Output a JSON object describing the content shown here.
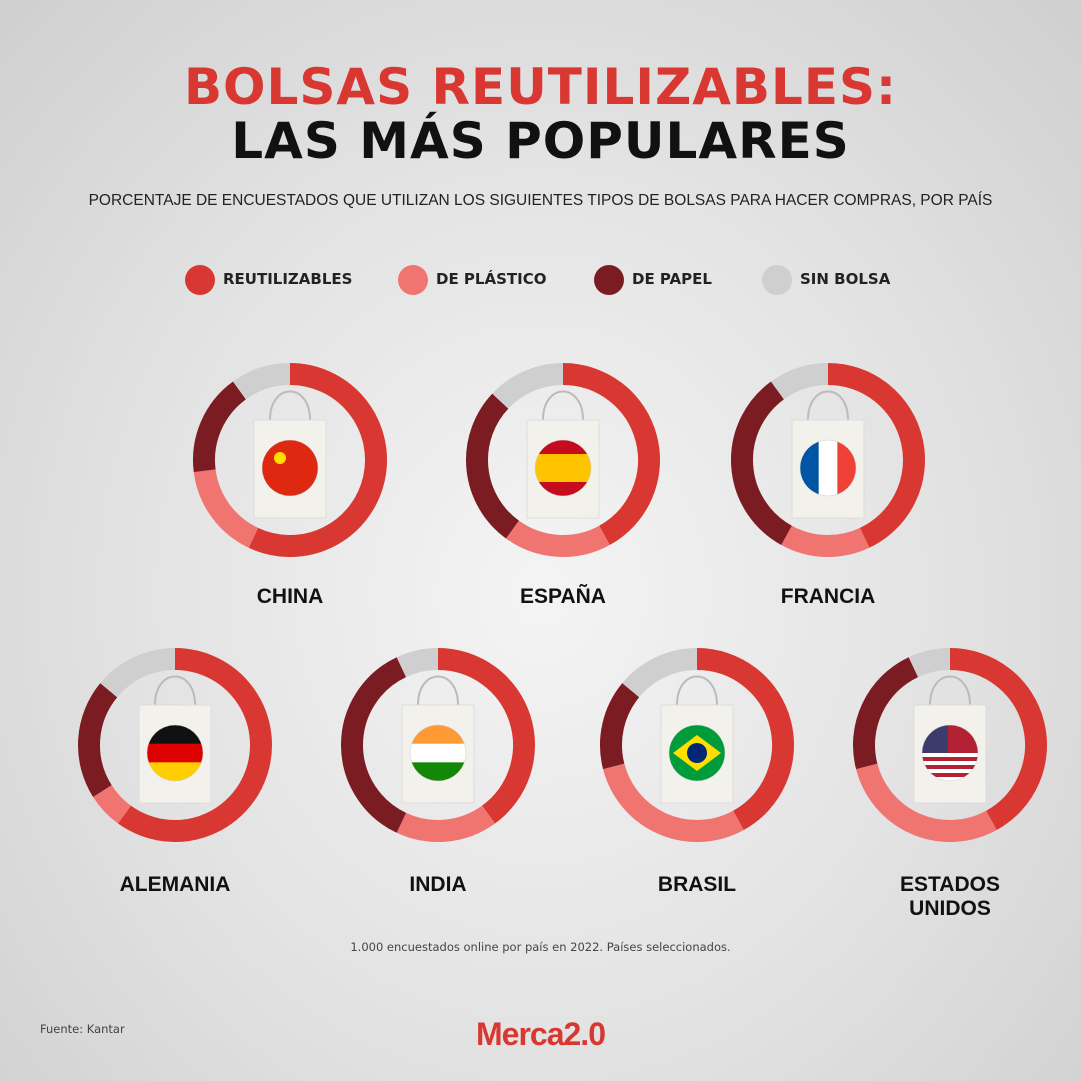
{
  "chart_data": {
    "type": "donut",
    "title_lines": [
      "BOLSAS REUTILIZABLES:",
      "LAS MÁS POPULARES"
    ],
    "subtitle": "PORCENTAJE DE ENCUESTADOS QUE UTILIZAN LOS SIGUIENTES TIPOS DE BOLSAS PARA HACER COMPRAS, POR PAÍS",
    "categories": [
      "CHINA",
      "ESPAÑA",
      "FRANCIA",
      "ALEMANIA",
      "INDIA",
      "BRASIL",
      "ESTADOS UNIDOS"
    ],
    "series": [
      {
        "name": "REUTILIZABLES",
        "color": "#d93731",
        "values": [
          57,
          42,
          43,
          60,
          40,
          42,
          42
        ]
      },
      {
        "name": "DE PLÁSTICO",
        "color": "#f07470",
        "values": [
          16,
          18,
          15,
          6,
          17,
          29,
          29
        ]
      },
      {
        "name": "DE PAPEL",
        "color": "#7a1c22",
        "values": [
          17,
          27,
          32,
          20,
          36,
          15,
          22
        ]
      },
      {
        "name": "SIN BOLSA",
        "color": "#cfcfcf",
        "values": [
          10,
          13,
          10,
          14,
          7,
          14,
          7
        ]
      }
    ],
    "note": "1.000 encuestados online por país en 2022. Países seleccionados.",
    "source": "Fuente: Kantar",
    "logo": "Merca2.0"
  }
}
